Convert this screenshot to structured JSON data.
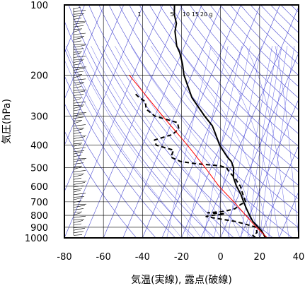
{
  "chart_data": {
    "type": "line",
    "subtype": "skew-T log-p thermodynamic diagram",
    "xlabel": "気温(実線), 露点(破線)",
    "ylabel": "気圧(hPa)",
    "xlim": [
      -80,
      40
    ],
    "ylim": [
      1000,
      100
    ],
    "y_scale": "log",
    "x_ticks": [
      -80,
      -60,
      -40,
      -20,
      0,
      20,
      40
    ],
    "x_tick_labels": [
      "-80",
      "-60",
      "-40",
      "-20",
      "0",
      "20",
      "40"
    ],
    "y_ticks": [
      100,
      200,
      300,
      400,
      500,
      600,
      700,
      800,
      900,
      1000
    ],
    "y_tick_labels": [
      "100",
      "200",
      "300",
      "400",
      "500",
      "600",
      "700",
      "800",
      "900",
      "1000"
    ],
    "grid": true,
    "mixing_ratio_labels": [
      "1",
      "5",
      "10",
      "15",
      "20",
      "g"
    ],
    "colors": {
      "temperature": "#000000",
      "dewpoint": "#000000",
      "parcel": "#ff0000",
      "isotherm": "#4b4bd2",
      "dry_adiabat": "#4b4bd2",
      "moist_adiabat": "#6464e6",
      "mixing_ratio": "#6464e6",
      "grid": "#000000"
    },
    "series": [
      {
        "key": "temperature",
        "style": "solid",
        "points": [
          {
            "p": 1000,
            "t": 23
          },
          {
            "p": 960,
            "t": 21
          },
          {
            "p": 925,
            "t": 19
          },
          {
            "p": 900,
            "t": 17
          },
          {
            "p": 850,
            "t": 13
          },
          {
            "p": 800,
            "t": 10
          },
          {
            "p": 750,
            "t": 7
          },
          {
            "p": 700,
            "t": 4
          },
          {
            "p": 650,
            "t": 1
          },
          {
            "p": 600,
            "t": -3
          },
          {
            "p": 550,
            "t": -6.5
          },
          {
            "p": 500,
            "t": -8.5
          },
          {
            "p": 470,
            "t": -11
          },
          {
            "p": 450,
            "t": -14
          },
          {
            "p": 400,
            "t": -20.5
          },
          {
            "p": 350,
            "t": -26
          },
          {
            "p": 330,
            "t": -28.5
          },
          {
            "p": 300,
            "t": -34.5
          },
          {
            "p": 250,
            "t": -45
          },
          {
            "p": 200,
            "t": -54
          },
          {
            "p": 180,
            "t": -57
          },
          {
            "p": 160,
            "t": -61
          },
          {
            "p": 150,
            "t": -64
          },
          {
            "p": 130,
            "t": -68
          },
          {
            "p": 120,
            "t": -69
          },
          {
            "p": 110,
            "t": -72
          },
          {
            "p": 100,
            "t": -74
          }
        ]
      },
      {
        "key": "dewpoint",
        "style": "dashed",
        "points": [
          {
            "p": 1000,
            "t": 18
          },
          {
            "p": 975,
            "t": 16
          },
          {
            "p": 950,
            "t": 17.5
          },
          {
            "p": 900,
            "t": 16
          },
          {
            "p": 870,
            "t": 9
          },
          {
            "p": 850,
            "t": 4
          },
          {
            "p": 840,
            "t": 0
          },
          {
            "p": 820,
            "t": -8
          },
          {
            "p": 810,
            "t": -12
          },
          {
            "p": 800,
            "t": -9
          },
          {
            "p": 790,
            "t": -3
          },
          {
            "p": 780,
            "t": -12
          },
          {
            "p": 770,
            "t": -4
          },
          {
            "p": 750,
            "t": 1
          },
          {
            "p": 720,
            "t": 3
          },
          {
            "p": 700,
            "t": 5
          },
          {
            "p": 650,
            "t": 2
          },
          {
            "p": 600,
            "t": -1
          },
          {
            "p": 550,
            "t": -6
          },
          {
            "p": 520,
            "t": -10
          },
          {
            "p": 500,
            "t": -12
          },
          {
            "p": 490,
            "t": -16
          },
          {
            "p": 480,
            "t": -29
          },
          {
            "p": 470,
            "t": -37
          },
          {
            "p": 450,
            "t": -43
          },
          {
            "p": 420,
            "t": -43
          },
          {
            "p": 400,
            "t": -53
          },
          {
            "p": 380,
            "t": -55
          },
          {
            "p": 360,
            "t": -47
          },
          {
            "p": 340,
            "t": -45
          },
          {
            "p": 320,
            "t": -47
          },
          {
            "p": 300,
            "t": -60
          },
          {
            "p": 280,
            "t": -66
          },
          {
            "p": 260,
            "t": -68
          },
          {
            "p": 250,
            "t": -72
          },
          {
            "p": 240,
            "t": -75
          }
        ]
      },
      {
        "key": "parcel",
        "style": "solid",
        "points": [
          {
            "p": 1000,
            "t": 24
          },
          {
            "p": 900,
            "t": 16
          },
          {
            "p": 800,
            "t": 8
          },
          {
            "p": 700,
            "t": -1
          },
          {
            "p": 600,
            "t": -12
          },
          {
            "p": 500,
            "t": -23
          },
          {
            "p": 400,
            "t": -37
          },
          {
            "p": 300,
            "t": -56
          },
          {
            "p": 200,
            "t": -82
          }
        ]
      }
    ]
  }
}
